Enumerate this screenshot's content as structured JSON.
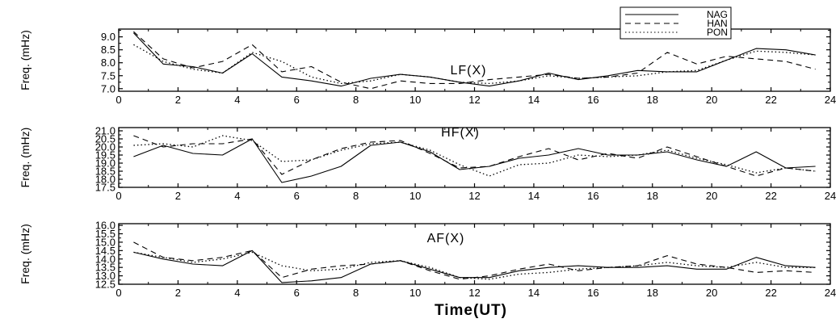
{
  "chart_data": {
    "xlabel": "Time(UT)",
    "legend": {
      "placement": "top-right",
      "entries": [
        {
          "name": "NAG",
          "style": "solid"
        },
        {
          "name": "HAN",
          "style": "dashed"
        },
        {
          "name": "PON",
          "style": "dotted"
        }
      ]
    },
    "panels": [
      {
        "type": "line",
        "label": "LF(X)",
        "ylabel": "Freq. (mHz)",
        "xlim": [
          0,
          24
        ],
        "ylim": [
          6.9,
          9.3
        ],
        "xticks": [
          "0",
          "2",
          "4",
          "6",
          "8",
          "10",
          "12",
          "14",
          "16",
          "18",
          "20",
          "22",
          "24"
        ],
        "yticks": [
          "7.0",
          "7.5",
          "8.0",
          "8.5",
          "9.0"
        ],
        "x": [
          0.5,
          1.5,
          2.5,
          3.5,
          4.5,
          5.5,
          6.5,
          7.5,
          8.5,
          9.5,
          10.5,
          11.5,
          12.5,
          13.5,
          14.5,
          15.5,
          16.5,
          17.5,
          18.5,
          19.5,
          20.5,
          21.5,
          22.5,
          23.5
        ],
        "series": [
          {
            "name": "NAG",
            "values": [
              9.15,
              7.95,
              7.85,
              7.6,
              8.35,
              7.45,
              7.3,
              7.1,
              7.4,
              7.55,
              7.45,
              7.25,
              7.1,
              7.3,
              7.6,
              7.35,
              7.5,
              7.7,
              7.65,
              7.65,
              8.1,
              8.55,
              8.5,
              8.3
            ]
          },
          {
            "name": "HAN",
            "values": [
              9.2,
              8.15,
              7.8,
              8.05,
              8.7,
              7.65,
              7.85,
              7.25,
              7.0,
              7.3,
              7.2,
              7.2,
              7.35,
              7.45,
              7.55,
              7.4,
              7.45,
              7.6,
              8.4,
              7.95,
              8.25,
              8.15,
              8.05,
              7.75
            ]
          },
          {
            "name": "PON",
            "values": [
              8.7,
              8.05,
              7.75,
              7.6,
              8.4,
              8.05,
              7.45,
              7.2,
              7.3,
              7.55,
              7.45,
              7.25,
              7.2,
              7.3,
              7.5,
              7.4,
              7.45,
              7.5,
              7.65,
              7.7,
              8.1,
              8.45,
              8.4,
              8.3
            ]
          }
        ]
      },
      {
        "type": "line",
        "label": "HF(X)",
        "ylabel": "Freq. (mHz)",
        "xlim": [
          0,
          24
        ],
        "ylim": [
          17.5,
          21.2
        ],
        "xticks": [
          "0",
          "2",
          "4",
          "6",
          "8",
          "10",
          "12",
          "14",
          "16",
          "18",
          "20",
          "22",
          "24"
        ],
        "yticks": [
          "17.5",
          "18.0",
          "18.5",
          "19.0",
          "19.5",
          "20.0",
          "20.5",
          "21.0"
        ],
        "x": [
          0.5,
          1.5,
          2.5,
          3.5,
          4.5,
          5.5,
          6.5,
          7.5,
          8.5,
          9.5,
          10.5,
          11.5,
          12.5,
          13.5,
          14.5,
          15.5,
          16.5,
          17.5,
          18.5,
          19.5,
          20.5,
          21.5,
          22.5,
          23.5
        ],
        "series": [
          {
            "name": "NAG",
            "values": [
              19.4,
              20.1,
              19.6,
              19.5,
              20.5,
              17.8,
              18.2,
              18.8,
              20.1,
              20.3,
              19.7,
              18.6,
              18.8,
              19.3,
              19.5,
              19.9,
              19.5,
              19.5,
              19.7,
              19.2,
              18.8,
              19.7,
              18.7,
              18.8
            ]
          },
          {
            "name": "HAN",
            "values": [
              20.7,
              20.0,
              20.2,
              20.2,
              20.5,
              18.3,
              19.2,
              19.9,
              20.3,
              20.4,
              19.6,
              18.7,
              18.8,
              19.4,
              19.9,
              19.2,
              19.6,
              19.3,
              20.0,
              19.4,
              18.8,
              18.2,
              18.7,
              18.5
            ]
          },
          {
            "name": "PON",
            "values": [
              20.1,
              20.2,
              20.0,
              20.7,
              20.4,
              19.1,
              19.2,
              19.8,
              20.2,
              20.3,
              19.8,
              18.9,
              18.2,
              18.9,
              19.0,
              19.5,
              19.4,
              19.5,
              19.8,
              19.3,
              18.9,
              18.4,
              18.7,
              18.5
            ]
          }
        ]
      },
      {
        "type": "line",
        "label": "AF(X)",
        "ylabel": "Freq. (mHz)",
        "xlim": [
          0,
          24
        ],
        "ylim": [
          12.5,
          16.1
        ],
        "xticks": [
          "0",
          "2",
          "4",
          "6",
          "8",
          "10",
          "12",
          "14",
          "16",
          "18",
          "20",
          "22",
          "24"
        ],
        "yticks": [
          "12.5",
          "13.0",
          "13.5",
          "14.0",
          "14.5",
          "15.0",
          "15.5",
          "16.0"
        ],
        "x": [
          0.5,
          1.5,
          2.5,
          3.5,
          4.5,
          5.5,
          6.5,
          7.5,
          8.5,
          9.5,
          10.5,
          11.5,
          12.5,
          13.5,
          14.5,
          15.5,
          16.5,
          17.5,
          18.5,
          19.5,
          20.5,
          21.5,
          22.5,
          23.5
        ],
        "series": [
          {
            "name": "NAG",
            "values": [
              14.4,
              14.0,
              13.7,
              13.6,
              14.5,
              12.6,
              12.7,
              12.9,
              13.7,
              13.9,
              13.4,
              12.9,
              12.9,
              13.3,
              13.5,
              13.6,
              13.5,
              13.5,
              13.6,
              13.4,
              13.4,
              14.1,
              13.6,
              13.5
            ]
          },
          {
            "name": "HAN",
            "values": [
              15.0,
              14.1,
              13.9,
              14.1,
              14.5,
              12.9,
              13.4,
              13.6,
              13.7,
              13.9,
              13.3,
              12.8,
              13.0,
              13.4,
              13.7,
              13.3,
              13.5,
              13.6,
              14.2,
              13.7,
              13.5,
              13.2,
              13.3,
              13.2
            ]
          },
          {
            "name": "PON",
            "values": [
              14.4,
              14.1,
              13.8,
              14.0,
              14.4,
              13.6,
              13.3,
              13.4,
              13.8,
              13.9,
              13.5,
              12.9,
              12.8,
              13.1,
              13.2,
              13.4,
              13.5,
              13.6,
              13.8,
              13.6,
              13.5,
              13.8,
              13.5,
              13.5
            ]
          }
        ]
      }
    ]
  }
}
